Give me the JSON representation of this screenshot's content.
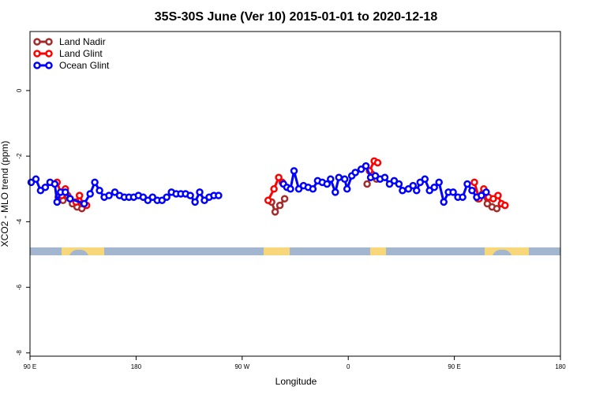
{
  "chart_data": {
    "type": "line",
    "title": "35S-30S June (Ver 10)   2015-01-01 to 2020-12-18",
    "xlabel": "Longitude",
    "ylabel": "XCO2 - MLO trend (ppm)",
    "xlim": [
      90,
      450
    ],
    "ylim": [
      -8.1,
      1.8
    ],
    "x_ticks": [
      {
        "value": 90,
        "label": "90 E"
      },
      {
        "value": 180,
        "label": "180"
      },
      {
        "value": 270,
        "label": "90 W"
      },
      {
        "value": 360,
        "label": "0"
      },
      {
        "value": 450,
        "label": "90 E"
      },
      {
        "value": 540,
        "label": "180"
      }
    ],
    "y_ticks": [
      {
        "value": 0,
        "label": "0"
      },
      {
        "value": -2,
        "label": "-2"
      },
      {
        "value": -4,
        "label": "-4"
      },
      {
        "value": -6,
        "label": "-6"
      },
      {
        "value": -8,
        "label": "-8"
      }
    ],
    "legend_position": "top-left",
    "grid": false,
    "series": [
      {
        "name": "Land Nadir",
        "color": "#a52a2a",
        "segments": [
          [
            [
              114,
              -3.25
            ],
            [
              118,
              -3.35
            ],
            [
              122,
              -3.2
            ],
            [
              126,
              -3.45
            ],
            [
              130,
              -3.55
            ],
            [
              134,
              -3.6
            ]
          ],
          [
            [
              295,
              -3.4
            ],
            [
              298,
              -3.7
            ],
            [
              302,
              -3.5
            ],
            [
              306,
              -3.3
            ]
          ],
          [
            [
              376,
              -2.85
            ],
            [
              380,
              -2.55
            ],
            [
              384,
              -2.7
            ]
          ],
          [
            [
              470,
              -3.3
            ],
            [
              474,
              -3.15
            ],
            [
              478,
              -3.45
            ],
            [
              482,
              -3.55
            ],
            [
              486,
              -3.6
            ]
          ]
        ]
      },
      {
        "name": "Land Glint",
        "color": "#ff0000",
        "segments": [
          [
            [
              113,
              -2.8
            ],
            [
              117,
              -3.2
            ],
            [
              120,
              -3.0
            ],
            [
              124,
              -3.3
            ],
            [
              129,
              -3.4
            ],
            [
              132,
              -3.2
            ],
            [
              135,
              -3.45
            ],
            [
              138,
              -3.5
            ]
          ],
          [
            [
              292,
              -3.35
            ],
            [
              297,
              -3.0
            ],
            [
              301,
              -2.65
            ],
            [
              304,
              -2.8
            ]
          ],
          [
            [
              378,
              -2.45
            ],
            [
              382,
              -2.15
            ],
            [
              385,
              -2.2
            ]
          ],
          [
            [
              467,
              -2.8
            ],
            [
              471,
              -3.3
            ],
            [
              475,
              -3.0
            ],
            [
              479,
              -3.25
            ],
            [
              483,
              -3.3
            ],
            [
              487,
              -3.2
            ],
            [
              490,
              -3.45
            ],
            [
              493,
              -3.5
            ]
          ]
        ]
      },
      {
        "name": "Ocean Glint",
        "color": "#0000ff",
        "segments": [
          [
            [
              91,
              -2.8
            ],
            [
              95,
              -2.7
            ],
            [
              99,
              -3.05
            ],
            [
              103,
              -2.95
            ],
            [
              107,
              -2.8
            ],
            [
              111,
              -2.85
            ],
            [
              113,
              -3.4
            ],
            [
              116,
              -3.1
            ],
            [
              120,
              -3.1
            ],
            [
              124,
              -3.3
            ],
            [
              136,
              -3.45
            ],
            [
              141,
              -3.15
            ],
            [
              145,
              -2.8
            ],
            [
              149,
              -3.05
            ],
            [
              153,
              -3.25
            ],
            [
              157,
              -3.2
            ],
            [
              162,
              -3.1
            ],
            [
              166,
              -3.2
            ],
            [
              170,
              -3.25
            ],
            [
              174,
              -3.25
            ],
            [
              178,
              -3.25
            ],
            [
              182,
              -3.2
            ],
            [
              186,
              -3.25
            ],
            [
              190,
              -3.35
            ],
            [
              194,
              -3.25
            ],
            [
              198,
              -3.35
            ],
            [
              202,
              -3.35
            ],
            [
              206,
              -3.25
            ],
            [
              210,
              -3.1
            ],
            [
              214,
              -3.15
            ],
            [
              218,
              -3.15
            ],
            [
              222,
              -3.15
            ],
            [
              226,
              -3.2
            ],
            [
              230,
              -3.4
            ],
            [
              234,
              -3.1
            ],
            [
              238,
              -3.35
            ],
            [
              242,
              -3.25
            ],
            [
              246,
              -3.2
            ],
            [
              250,
              -3.2
            ]
          ],
          [
            [
              305,
              -2.85
            ],
            [
              308,
              -2.95
            ],
            [
              311,
              -3.0
            ],
            [
              314,
              -2.45
            ],
            [
              318,
              -3.0
            ],
            [
              322,
              -2.9
            ],
            [
              326,
              -2.95
            ],
            [
              330,
              -3.0
            ],
            [
              334,
              -2.75
            ],
            [
              338,
              -2.8
            ],
            [
              342,
              -2.85
            ],
            [
              345,
              -2.7
            ],
            [
              349,
              -3.1
            ],
            [
              352,
              -2.65
            ],
            [
              357,
              -2.7
            ],
            [
              359,
              -3.0
            ],
            [
              363,
              -2.6
            ],
            [
              366,
              -2.5
            ],
            [
              371,
              -2.4
            ],
            [
              375,
              -2.3
            ],
            [
              379,
              -2.65
            ],
            [
              383,
              -2.6
            ],
            [
              387,
              -2.7
            ],
            [
              391,
              -2.65
            ],
            [
              395,
              -2.85
            ],
            [
              399,
              -2.75
            ],
            [
              403,
              -2.85
            ],
            [
              406,
              -3.05
            ],
            [
              411,
              -3.0
            ],
            [
              415,
              -2.9
            ],
            [
              418,
              -3.05
            ],
            [
              421,
              -2.8
            ],
            [
              425,
              -2.7
            ],
            [
              429,
              -3.05
            ],
            [
              433,
              -2.95
            ],
            [
              437,
              -2.8
            ],
            [
              441,
              -3.4
            ],
            [
              445,
              -3.1
            ],
            [
              449,
              -3.1
            ],
            [
              453,
              -3.25
            ],
            [
              457,
              -3.25
            ],
            [
              461,
              -2.85
            ],
            [
              465,
              -3.05
            ],
            [
              469,
              -3.25
            ],
            [
              473,
              -3.2
            ],
            [
              477,
              -3.1
            ]
          ]
        ]
      }
    ]
  }
}
